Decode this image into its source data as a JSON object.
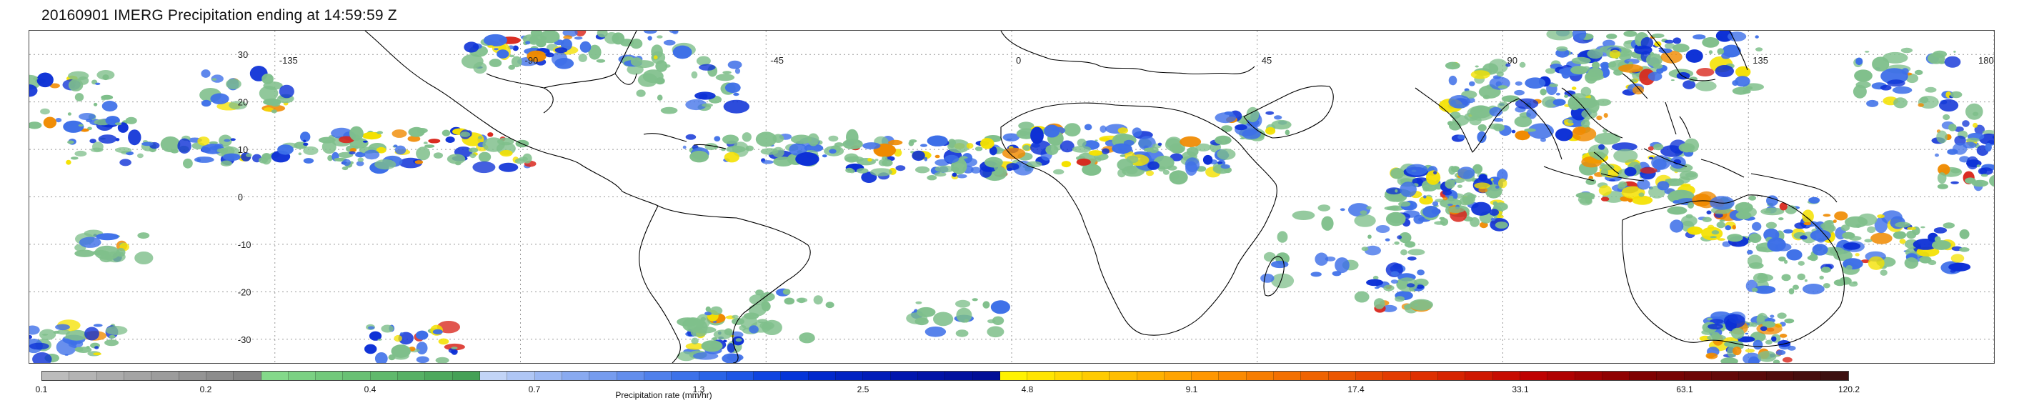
{
  "title": "20160901 IMERG Precipitation ending at 14:59:59 Z",
  "map": {
    "lon_labels": [
      "-135",
      "-90",
      "-45",
      "0",
      "45",
      "90",
      "135",
      "180"
    ],
    "lon_values": [
      -135,
      -90,
      -45,
      0,
      45,
      90,
      135,
      180
    ],
    "lat_labels": [
      "30",
      "20",
      "10",
      "0",
      "-10",
      "-20",
      "-30"
    ],
    "lat_values": [
      30,
      20,
      10,
      0,
      -10,
      -20,
      -30
    ],
    "lon_range": [
      -180,
      180
    ],
    "lat_range": [
      -35,
      35
    ],
    "gridlines": "dotted",
    "coastline_color": "#000000"
  },
  "colorbar": {
    "tick_labels": [
      "0.1",
      "0.2",
      "0.4",
      "0.7",
      "1.3",
      "2.5",
      "4.8",
      "9.1",
      "17.4",
      "33.1",
      "63.1",
      "120.2"
    ],
    "unit_label": "Precipitation rate (mm/hr)",
    "colors": [
      "#bcbcbc",
      "#b4b4b4",
      "#acacac",
      "#a4a4a4",
      "#9c9c9c",
      "#949494",
      "#8c8c8c",
      "#848484",
      "#84d98a",
      "#7bd183",
      "#72c97b",
      "#69c174",
      "#60b96c",
      "#57b165",
      "#4ea95d",
      "#45a156",
      "#c2d4f7",
      "#afc6f5",
      "#9cb8f3",
      "#89aaf1",
      "#769cef",
      "#638eed",
      "#5080eb",
      "#3d72e9",
      "#2a64e7",
      "#1e56e5",
      "#0f44e0",
      "#0535d8",
      "#0028cc",
      "#0022c2",
      "#001cb8",
      "#0016ae",
      "#0012a6",
      "#00109e",
      "#000e96",
      "#fff200",
      "#ffe500",
      "#ffd800",
      "#ffcb00",
      "#ffbe00",
      "#ffb100",
      "#ffa400",
      "#ff9700",
      "#fb8a00",
      "#f77d00",
      "#f37000",
      "#ef6300",
      "#eb5600",
      "#e74900",
      "#e33c00",
      "#df3000",
      "#d72400",
      "#cf1800",
      "#c70c00",
      "#bf0000",
      "#b00000",
      "#a00000",
      "#900000",
      "#800000",
      "#780404",
      "#6e0606",
      "#640808",
      "#5a0a0a",
      "#500c0c",
      "#460e0e",
      "#3c1010"
    ]
  },
  "precip_palette": [
    "#7fbf8b",
    "#3d6fe8",
    "#0b2fd6",
    "#f4e100",
    "#f08a00",
    "#d9261c",
    "#9b0000"
  ]
}
